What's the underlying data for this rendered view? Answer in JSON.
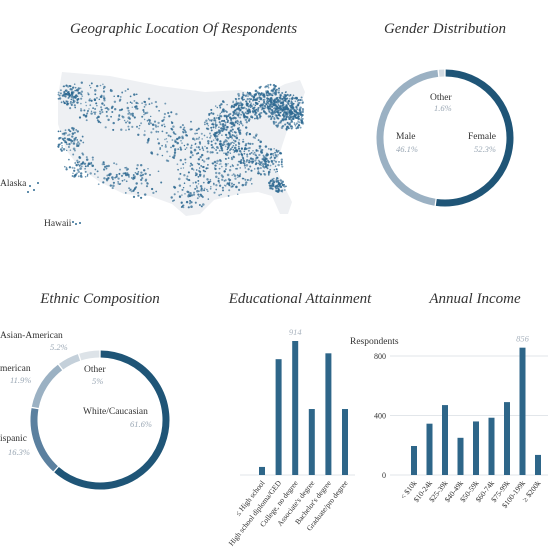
{
  "panels": {
    "map_title": "Geographic Location Of Respondents",
    "gender_title": "Gender Distribution",
    "ethnic_title": "Ethnic Composition",
    "education_title": "Educational Attainment",
    "income_title": "Annual Income"
  },
  "map": {
    "labels": [
      "Alaska",
      "Hawaii"
    ],
    "dot_color": "#2f6a92",
    "land_color": "#eef0f3"
  },
  "chart_data": [
    {
      "type": "pie",
      "title": "Gender Distribution",
      "labels": [
        "Female",
        "Male",
        "Other"
      ],
      "values": [
        52.3,
        46.1,
        1.6
      ],
      "display": [
        "52.3%",
        "46.1%",
        "1.6%"
      ],
      "colors": [
        "#1f5577",
        "#9bb1c3",
        "#d3dbe2"
      ]
    },
    {
      "type": "pie",
      "title": "Ethnic Composition",
      "labels": [
        "White/Caucasian",
        "Hispanic",
        "African-American",
        "Asian-American",
        "Other"
      ],
      "values": [
        61.6,
        16.3,
        11.9,
        5.2,
        5.0
      ],
      "display": [
        "61.6%",
        "16.3%",
        "11.9%",
        "5.2%",
        "5%"
      ],
      "visible_labels": [
        "White/Caucasian",
        "ispanic",
        "merican",
        "Asian-American",
        "Other"
      ],
      "colors": [
        "#1f5577",
        "#5b809f",
        "#9bb1c3",
        "#c4d0da",
        "#dde3e8"
      ]
    },
    {
      "type": "bar",
      "title": "Educational Attainment",
      "categories": [
        "≤ High school",
        "High school diploma/GED",
        "College, no degree",
        "Associate's degree",
        "Bachelor's degree",
        "Graduate/pro degree"
      ],
      "values": [
        55,
        790,
        914,
        450,
        830,
        450
      ],
      "peak_label": "914",
      "ylim": [
        0,
        914
      ],
      "color": "#2e6689"
    },
    {
      "type": "bar",
      "title": "Annual Income",
      "ylabel": "Respondents",
      "categories": [
        "< $10k",
        "$10-24k",
        "$25-39k",
        "$40-49k",
        "$50-59k",
        "$60-74k",
        "$75-99k",
        "$100-199k",
        "≥ $200k"
      ],
      "values": [
        195,
        345,
        470,
        250,
        360,
        385,
        490,
        856,
        135
      ],
      "peak_label": "856",
      "yticks": [
        0,
        400,
        800
      ],
      "ylim": [
        0,
        900
      ],
      "color": "#2e6689"
    }
  ]
}
